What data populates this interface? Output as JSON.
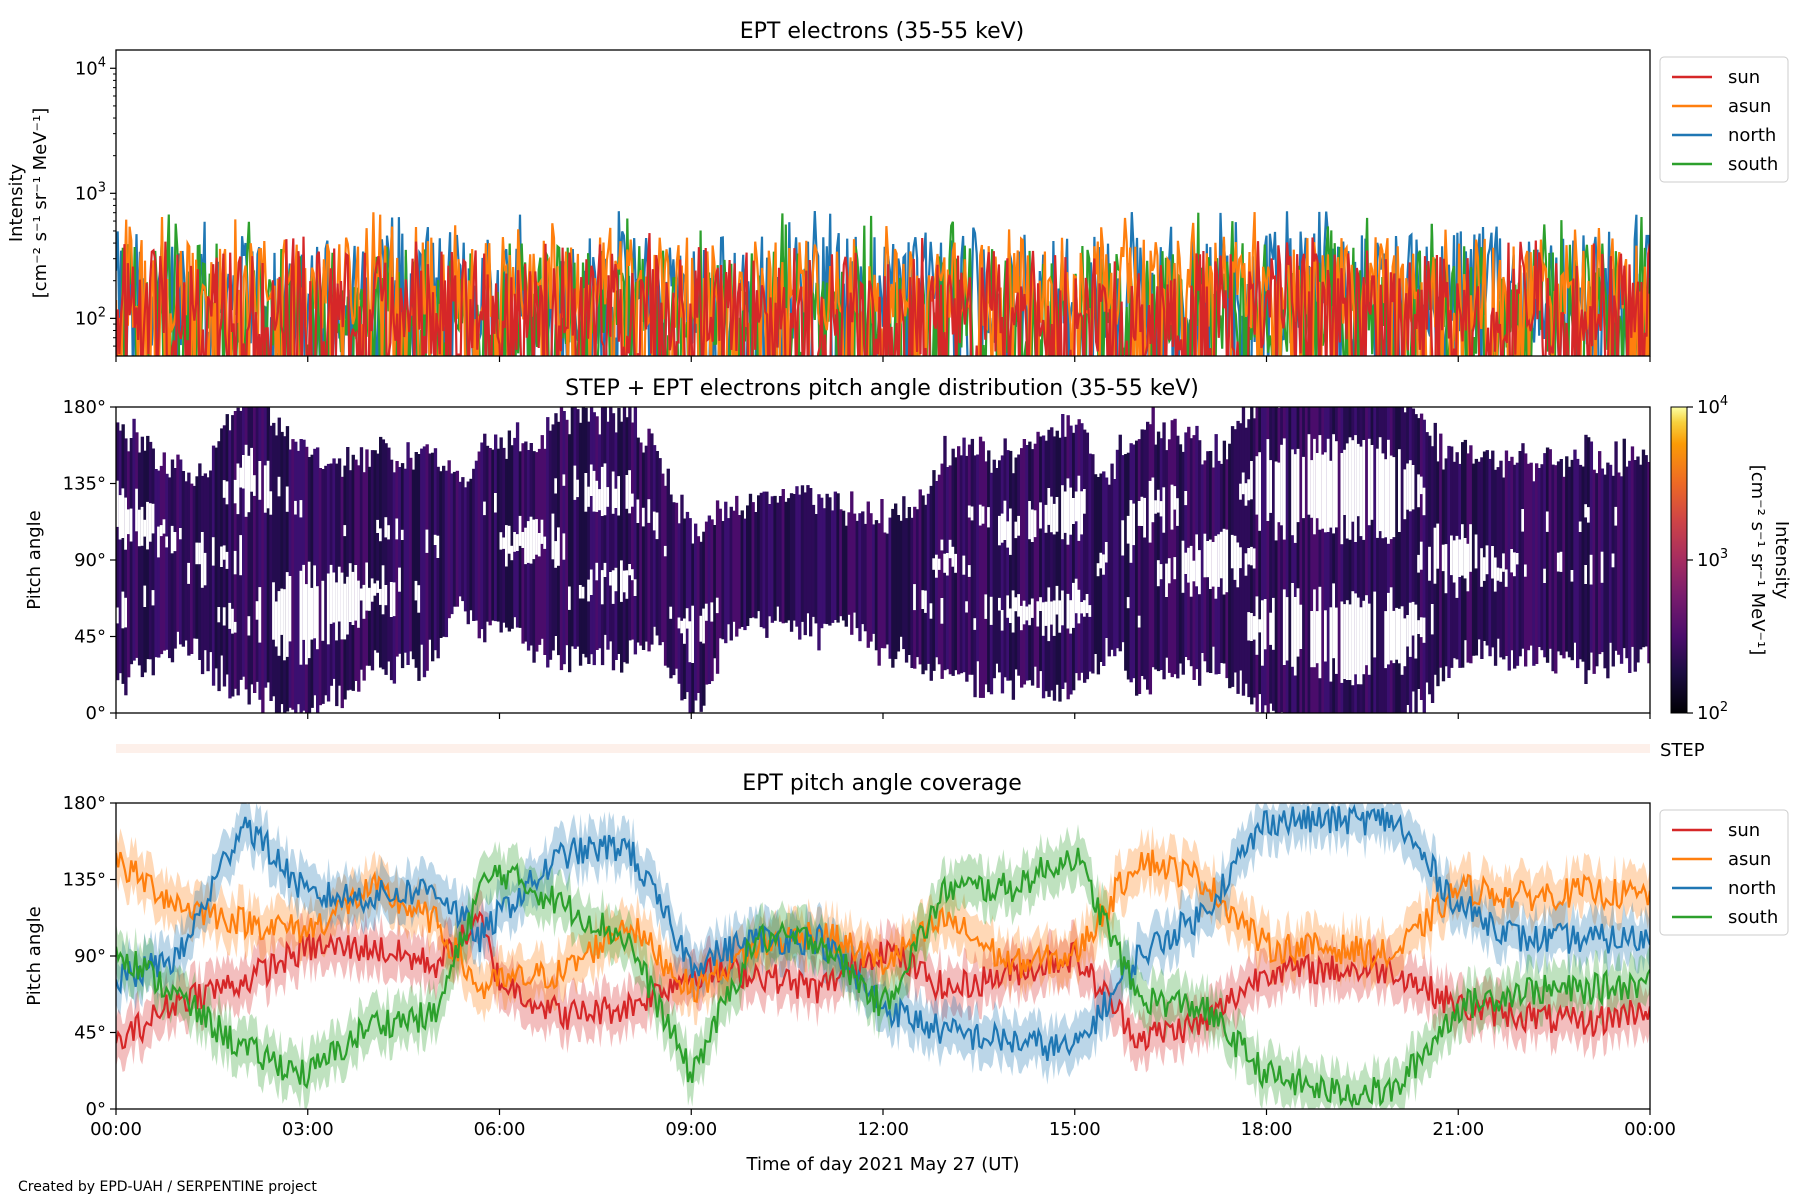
{
  "figure": {
    "credit": "Created by EPD-UAH / SERPENTINE project",
    "xlabel": "Time of day 2021 May 27 (UT)",
    "x_ticks": [
      "00:00",
      "03:00",
      "06:00",
      "09:00",
      "12:00",
      "15:00",
      "18:00",
      "21:00",
      "00:00"
    ]
  },
  "colors": {
    "sun": "#d62728",
    "asun": "#ff7f0e",
    "north": "#1f77b4",
    "south": "#2ca02c"
  },
  "chart_data": [
    {
      "type": "line",
      "title": "EPT electrons (35-55 keV)",
      "ylabel_line1": "Intensity",
      "ylabel_line2": "[cm⁻² s⁻¹ sr⁻¹ MeV⁻¹]",
      "yscale": "log",
      "ylim": [
        50,
        14000
      ],
      "y_ticks": [
        {
          "value": 100,
          "base": "10",
          "exp": "2"
        },
        {
          "value": 1000,
          "base": "10",
          "exp": "3"
        },
        {
          "value": 10000,
          "base": "10",
          "exp": "4"
        }
      ],
      "xlim_hours": [
        0,
        24
      ],
      "legend": {
        "position": "outside-right",
        "entries": [
          "sun",
          "asun",
          "north",
          "south"
        ]
      },
      "series": [
        {
          "name": "sun",
          "typical_range": [
            50,
            350
          ],
          "peak": 500
        },
        {
          "name": "asun",
          "typical_range": [
            80,
            450
          ],
          "peak": 720
        },
        {
          "name": "north",
          "typical_range": [
            60,
            500
          ],
          "peak": 730
        },
        {
          "name": "south",
          "typical_range": [
            50,
            400
          ],
          "peak": 700
        }
      ]
    },
    {
      "type": "heatmap",
      "title": "STEP + EPT electrons pitch angle distribution (35-55 keV)",
      "ylabel": "Pitch angle",
      "y_ticks": [
        "0°",
        "45°",
        "90°",
        "135°",
        "180°"
      ],
      "ylim": [
        0,
        180
      ],
      "xlim_hours": [
        0,
        24
      ],
      "colorbar": {
        "label_line1": "Intensity",
        "label_line2": "[cm⁻² s⁻¹ sr⁻¹ MeV⁻¹]",
        "scale": "log",
        "range": [
          100,
          10000
        ],
        "ticks": [
          {
            "value": 100,
            "base": "10",
            "exp": "2"
          },
          {
            "value": 1000,
            "base": "10",
            "exp": "3"
          },
          {
            "value": 10000,
            "base": "10",
            "exp": "4"
          }
        ],
        "colormap": "inferno"
      }
    },
    {
      "type": "line",
      "label": "STEP",
      "description_color": "#fdf0ea"
    },
    {
      "type": "line",
      "title": "EPT pitch angle coverage",
      "ylabel": "Pitch angle",
      "y_ticks": [
        "0°",
        "45°",
        "90°",
        "135°",
        "180°"
      ],
      "ylim": [
        0,
        180
      ],
      "xlim_hours": [
        0,
        24
      ],
      "legend": {
        "position": "outside-right",
        "entries": [
          "sun",
          "asun",
          "north",
          "south"
        ]
      },
      "series": [
        {
          "name": "sun",
          "x": [
            0,
            1,
            2,
            3,
            4,
            5,
            5.7,
            6,
            7,
            8,
            9,
            10,
            11,
            12,
            13,
            14,
            15,
            16,
            17,
            18,
            19,
            20,
            21,
            22,
            23,
            24
          ],
          "y": [
            38,
            65,
            75,
            95,
            95,
            85,
            110,
            75,
            55,
            60,
            80,
            80,
            70,
            95,
            70,
            80,
            90,
            42,
            50,
            82,
            82,
            82,
            60,
            55,
            50,
            60
          ]
        },
        {
          "name": "asun",
          "x": [
            0,
            1,
            2,
            3,
            4,
            5,
            5.7,
            6,
            7,
            8,
            9,
            10,
            11,
            12,
            13,
            14,
            15,
            16,
            17,
            18,
            19,
            20,
            21,
            22,
            23,
            24
          ],
          "y": [
            145,
            120,
            110,
            105,
            130,
            110,
            70,
            75,
            80,
            110,
            70,
            95,
            105,
            85,
            112,
            85,
            90,
            148,
            135,
            95,
            95,
            90,
            130,
            125,
            128,
            125
          ]
        },
        {
          "name": "north",
          "x": [
            0,
            1,
            2,
            3,
            4,
            5,
            5.7,
            6,
            7,
            8,
            9,
            10,
            11,
            12,
            13,
            14,
            15,
            16,
            17,
            18,
            19,
            20,
            21,
            22,
            23,
            24
          ],
          "y": [
            75,
            90,
            170,
            125,
            125,
            130,
            100,
            115,
            150,
            155,
            85,
            100,
            100,
            60,
            45,
            40,
            35,
            90,
            115,
            170,
            170,
            170,
            120,
            100,
            100,
            100
          ]
        },
        {
          "name": "south",
          "x": [
            0,
            1,
            2,
            3,
            4,
            5,
            5.7,
            6,
            7,
            8,
            9,
            10,
            11,
            12,
            13,
            14,
            15,
            16,
            17,
            18,
            19,
            20,
            21,
            22,
            23,
            24
          ],
          "y": [
            95,
            65,
            35,
            20,
            50,
            55,
            130,
            140,
            120,
            100,
            20,
            100,
            100,
            60,
            130,
            130,
            150,
            65,
            60,
            20,
            10,
            10,
            60,
            70,
            70,
            75
          ]
        }
      ]
    }
  ]
}
